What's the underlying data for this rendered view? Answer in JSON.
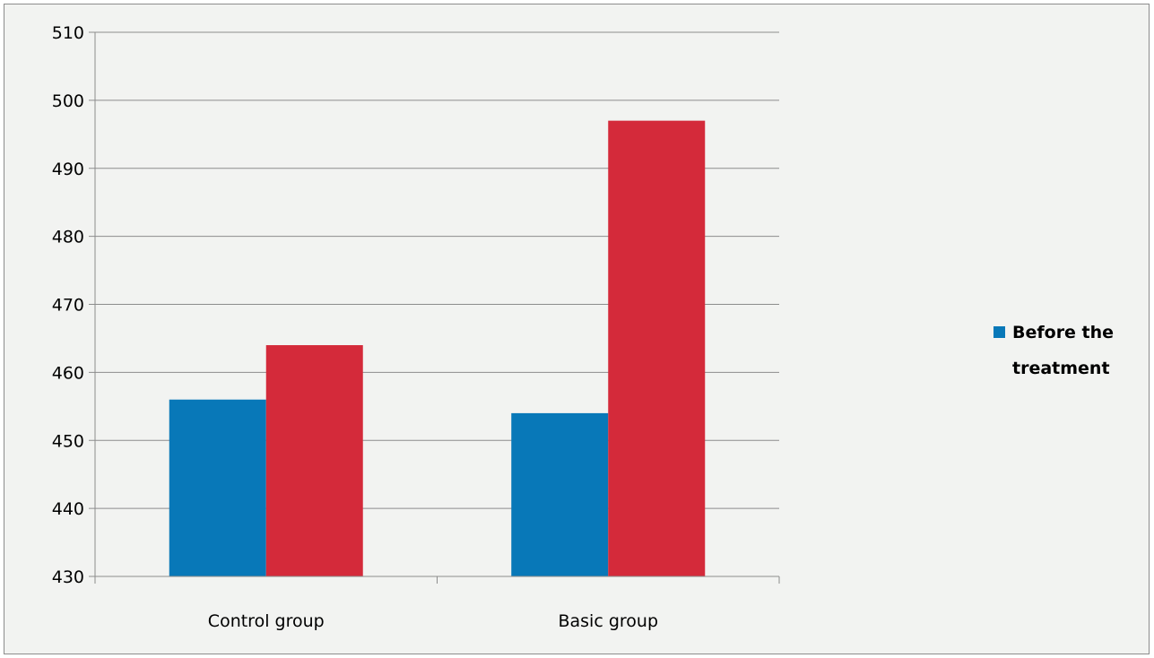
{
  "chart_data": {
    "type": "bar",
    "categories": [
      "Control group",
      "Basic group"
    ],
    "series": [
      {
        "name": "Before the treatment",
        "values": [
          456,
          454
        ],
        "color": "#0878b8"
      },
      {
        "values": [
          464,
          497
        ],
        "color": "#d42a3a"
      }
    ],
    "ylim": [
      430,
      510
    ],
    "yticks": [
      430,
      440,
      450,
      460,
      470,
      480,
      490,
      500,
      510
    ],
    "grid": true,
    "legend": {
      "placement": "right",
      "entries": [
        "Before the treatment"
      ]
    },
    "title": "",
    "xlabel": "",
    "ylabel": ""
  }
}
